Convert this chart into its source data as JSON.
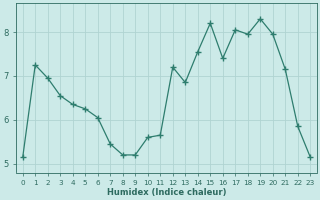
{
  "x": [
    0,
    1,
    2,
    3,
    4,
    5,
    6,
    7,
    8,
    9,
    10,
    11,
    12,
    13,
    14,
    15,
    16,
    17,
    18,
    19,
    20,
    21,
    22,
    23
  ],
  "y": [
    5.15,
    7.25,
    6.95,
    6.55,
    6.35,
    6.25,
    6.05,
    5.45,
    5.2,
    5.2,
    5.6,
    5.65,
    7.2,
    6.85,
    7.55,
    8.2,
    7.4,
    8.05,
    7.95,
    8.3,
    7.95,
    7.15,
    5.85,
    5.15
  ],
  "line_color": "#2e7d6e",
  "marker": "+",
  "marker_size": 4,
  "bg_color": "#cceae8",
  "grid_color": "#b0d4d2",
  "xlabel": "Humidex (Indice chaleur)",
  "ylim": [
    4.8,
    8.65
  ],
  "xlim": [
    -0.5,
    23.5
  ],
  "yticks": [
    5,
    6,
    7,
    8
  ],
  "xticks": [
    0,
    1,
    2,
    3,
    4,
    5,
    6,
    7,
    8,
    9,
    10,
    11,
    12,
    13,
    14,
    15,
    16,
    17,
    18,
    19,
    20,
    21,
    22,
    23
  ],
  "tick_color": "#2e6b60",
  "label_color": "#2e6b60",
  "xlabel_fontsize": 6.0,
  "xtick_fontsize": 5.2,
  "ytick_fontsize": 6.0,
  "linewidth": 0.9
}
